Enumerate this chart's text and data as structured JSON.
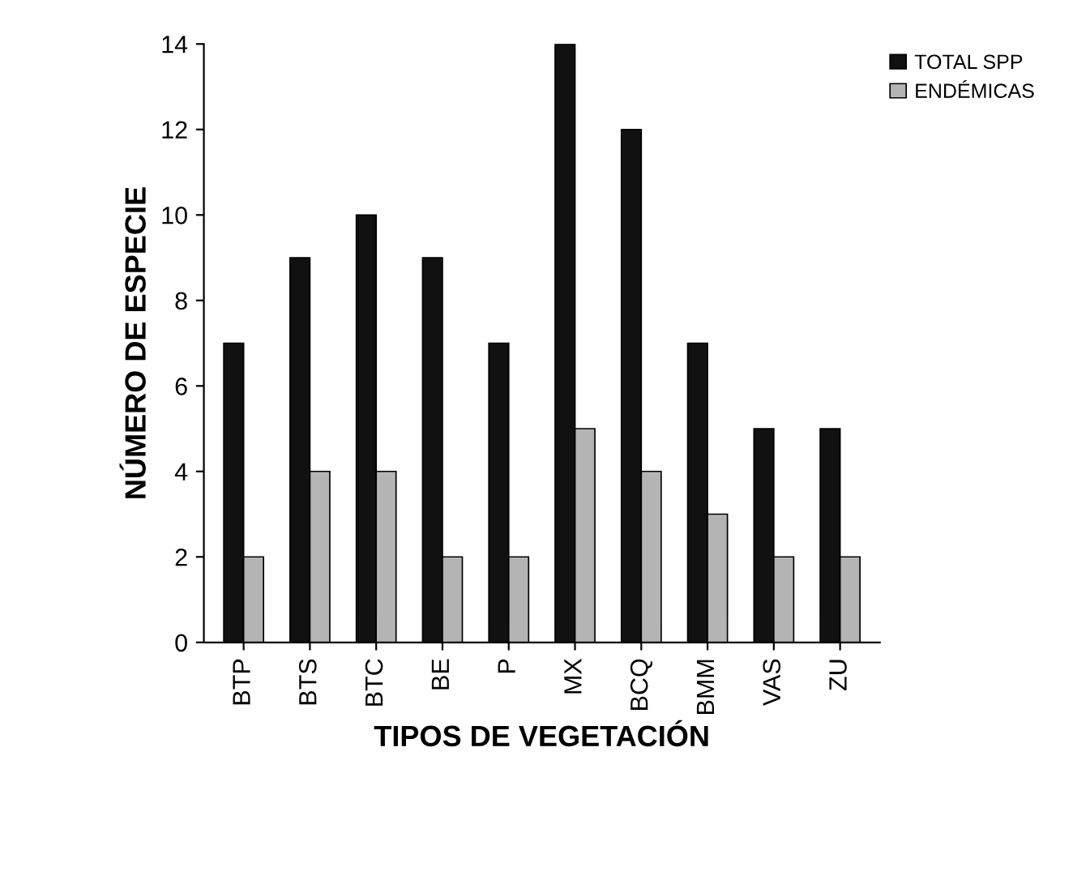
{
  "chart_data": {
    "type": "bar",
    "xlabel": "TIPOS DE VEGETACIÓN",
    "ylabel": "NÚMERO DE ESPECIE",
    "categories": [
      "BTP",
      "BTS",
      "BTC",
      "BE",
      "P",
      "MX",
      "BCQ",
      "BMM",
      "VAS",
      "ZU"
    ],
    "series": [
      {
        "name": "TOTAL SPP",
        "color": "#111111",
        "values": [
          7,
          9,
          10,
          9,
          7,
          14,
          12,
          7,
          5,
          5
        ]
      },
      {
        "name": "ENDÉMICAS",
        "color": "#b4b4b4",
        "values": [
          2,
          4,
          4,
          2,
          2,
          5,
          4,
          3,
          2,
          2
        ]
      }
    ],
    "ylim": [
      0,
      14
    ],
    "yticks": [
      0,
      2,
      4,
      6,
      8,
      10,
      12,
      14
    ],
    "grid": false,
    "legend": "top right"
  }
}
